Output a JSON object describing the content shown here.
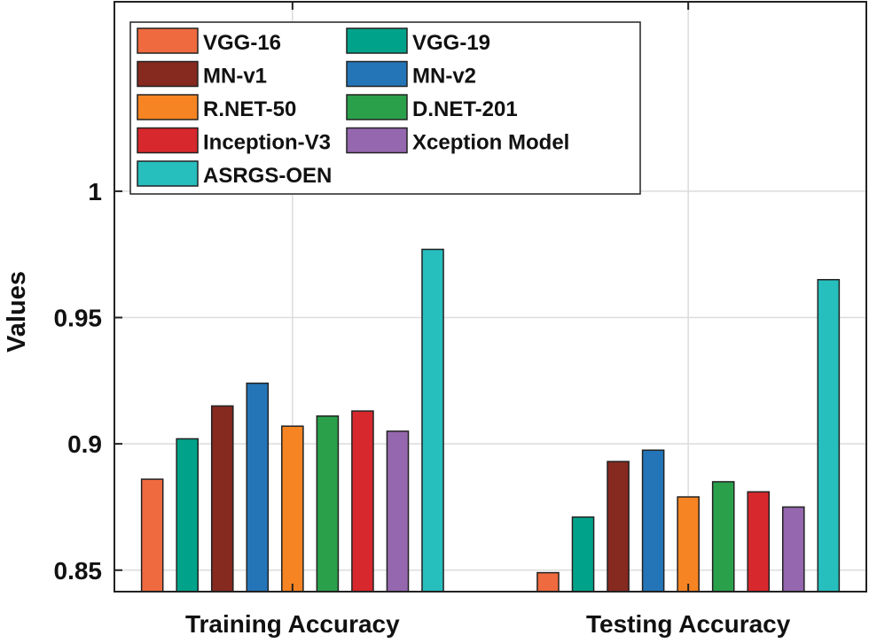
{
  "chart_data": {
    "type": "bar",
    "title": "",
    "xlabel": "",
    "ylabel": "Values",
    "categories": [
      "Training Accuracy",
      "Testing Accuracy"
    ],
    "ylim": [
      0.8415,
      1.075
    ],
    "yticks": [
      0.85,
      0.9,
      0.95,
      1
    ],
    "ytick_labels": [
      "0.85",
      "0.9",
      "0.95",
      "1"
    ],
    "grid": true,
    "legend_placement": "top-left",
    "series": [
      {
        "name": "VGG-16",
        "color": "#EF6A3F",
        "values": [
          0.886,
          0.849
        ]
      },
      {
        "name": "VGG-19",
        "color": "#00A38A",
        "values": [
          0.902,
          0.871
        ]
      },
      {
        "name": "MN-v1",
        "color": "#86291F",
        "values": [
          0.915,
          0.893
        ]
      },
      {
        "name": "MN-v2",
        "color": "#2475B8",
        "values": [
          0.924,
          0.8975
        ]
      },
      {
        "name": "R.NET-50",
        "color": "#F68422",
        "values": [
          0.907,
          0.879
        ]
      },
      {
        "name": "D.NET-201",
        "color": "#2BA04A",
        "values": [
          0.911,
          0.885
        ]
      },
      {
        "name": "Inception-V3",
        "color": "#D7282D",
        "values": [
          0.913,
          0.881
        ]
      },
      {
        "name": "Xception Model",
        "color": "#9467AE",
        "values": [
          0.905,
          0.875
        ]
      },
      {
        "name": "ASRGS-OEN",
        "color": "#27BEBE",
        "values": [
          0.977,
          0.965
        ]
      }
    ]
  }
}
